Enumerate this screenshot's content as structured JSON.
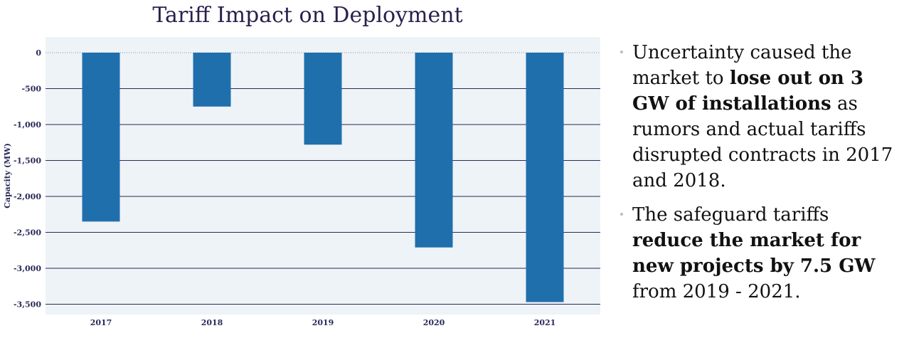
{
  "chart_data": {
    "type": "bar",
    "title": "Tariff Impact on Deployment",
    "xlabel": "",
    "ylabel": "Capacity (MW)",
    "categories": [
      "2017",
      "2018",
      "2019",
      "2020",
      "2021"
    ],
    "values": [
      -2350,
      -750,
      -1280,
      -2710,
      -3470
    ],
    "ylim": [
      -3600,
      0
    ],
    "yticks": [
      0,
      -500,
      -1000,
      -1500,
      -2000,
      -2500,
      -3000,
      -3500
    ],
    "ytick_labels": [
      "0",
      "-500",
      "-1,000",
      "-1,500",
      "-2,000",
      "-2,500",
      "-3,000",
      "-3,500"
    ],
    "grid": true,
    "colors": {
      "bar": "#1f6fac",
      "plot_bg": "#eef3f7",
      "grid": "#2b2a5a",
      "axis_text": "#2b2a5a"
    }
  },
  "bullets": [
    {
      "before": "Uncertainty caused the market to ",
      "bold": "lose out on 3 GW of installations",
      "after": " as rumors and actual tariffs disrupted contracts in 2017 and 2018."
    },
    {
      "before": "The safeguard tariffs ",
      "bold": "reduce the market for new projects by 7.5 GW",
      "after": " from 2019 - 2021."
    }
  ]
}
